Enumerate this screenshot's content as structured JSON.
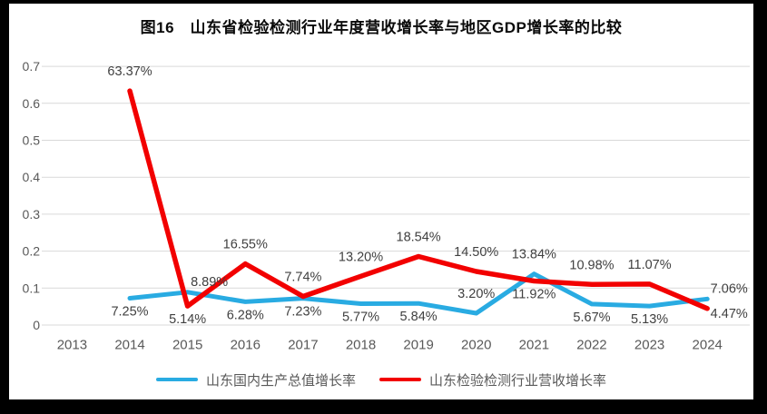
{
  "chart_data": {
    "type": "line",
    "title": "图16　山东省检验检测行业年度营收增长率与地区GDP增长率的比较",
    "categories": [
      "2013",
      "2014",
      "2015",
      "2016",
      "2017",
      "2018",
      "2019",
      "2020",
      "2021",
      "2022",
      "2023",
      "2024"
    ],
    "xlabel": "",
    "ylabel": "",
    "y_axis": {
      "min": 0,
      "max": 0.7,
      "tick_step": 0.1,
      "tick_labels": [
        "0",
        "0.1",
        "0.2",
        "0.3",
        "0.4",
        "0.5",
        "0.6",
        "0.7"
      ]
    },
    "grid": true,
    "legend_position": "bottom",
    "value_unit": "percent",
    "colors": {
      "gdp_line": "#29ABE2",
      "industry_line": "#F20000",
      "gridline": "#D9D9D9",
      "tick_text": "#595959",
      "data_label_text": "#404040"
    },
    "series": [
      {
        "name": "山东国内生产总值增长率",
        "color": "#29ABE2",
        "values": [
          null,
          7.25,
          8.89,
          6.28,
          7.23,
          5.77,
          5.84,
          3.2,
          13.84,
          5.67,
          5.13,
          7.06
        ],
        "labels": [
          null,
          "7.25%",
          "8.89%",
          "6.28%",
          "7.23%",
          "5.77%",
          "5.84%",
          "3.20%",
          "13.84%",
          "5.67%",
          "5.13%",
          "7.06%"
        ],
        "label_positions": [
          null,
          "below",
          "above-right",
          "below",
          "below",
          "below",
          "below",
          "above",
          "above",
          "below",
          "below",
          "above-right"
        ]
      },
      {
        "name": "山东检验检测行业营收增长率",
        "color": "#F20000",
        "values": [
          null,
          63.37,
          5.14,
          16.55,
          7.74,
          13.2,
          18.54,
          14.5,
          11.92,
          10.98,
          11.07,
          4.47
        ],
        "labels": [
          null,
          "63.37%",
          "5.14%",
          "16.55%",
          "7.74%",
          "13.20%",
          "18.54%",
          "14.50%",
          "11.92%",
          "10.98%",
          "11.07%",
          "4.47%"
        ],
        "label_positions": [
          null,
          "above",
          "below",
          "above",
          "above",
          "above",
          "above",
          "above",
          "below",
          "above",
          "above",
          "below-right"
        ]
      }
    ]
  }
}
